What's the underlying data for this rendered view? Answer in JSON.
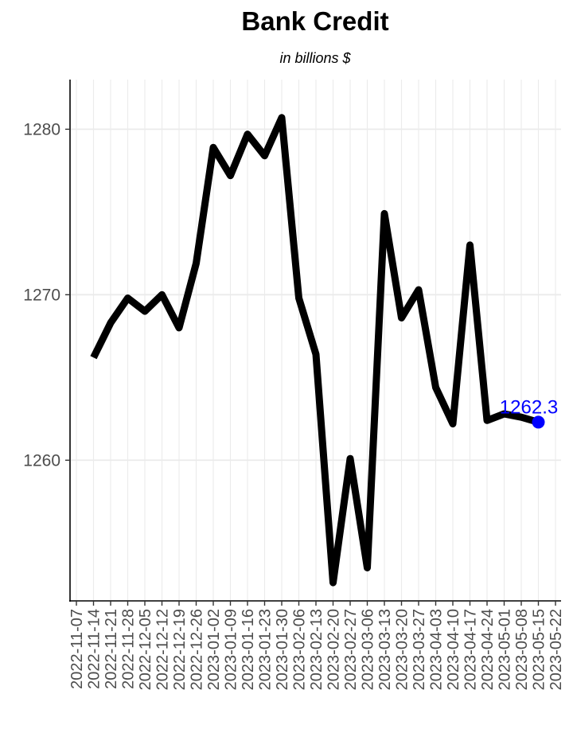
{
  "chart_data": {
    "type": "line",
    "title": "Bank Credit",
    "subtitle": "in billions $",
    "xlabel": "",
    "ylabel": "",
    "x": [
      "2022-11-14",
      "2022-11-21",
      "2022-11-28",
      "2022-12-05",
      "2022-12-12",
      "2022-12-19",
      "2022-12-26",
      "2023-01-02",
      "2023-01-09",
      "2023-01-16",
      "2023-01-23",
      "2023-01-30",
      "2023-02-06",
      "2023-02-13",
      "2023-02-20",
      "2023-02-27",
      "2023-03-06",
      "2023-03-13",
      "2023-03-20",
      "2023-03-27",
      "2023-04-03",
      "2023-04-10",
      "2023-04-17",
      "2023-04-24",
      "2023-05-01",
      "2023-05-08",
      "2023-05-15"
    ],
    "series": [
      {
        "values": [
          1266.2,
          1268.3,
          1269.8,
          1269.0,
          1270.0,
          1268.0,
          1271.9,
          1278.9,
          1277.2,
          1279.7,
          1278.4,
          1280.7,
          1269.8,
          1266.4,
          1252.6,
          1260.1,
          1253.5,
          1274.9,
          1268.6,
          1270.3,
          1264.4,
          1262.2,
          1273.0,
          1262.4,
          1262.8,
          1262.6,
          1262.3
        ]
      }
    ],
    "x_ticks": [
      "2022-11-07",
      "2022-11-14",
      "2022-11-21",
      "2022-11-28",
      "2022-12-05",
      "2022-12-12",
      "2022-12-19",
      "2022-12-26",
      "2023-01-02",
      "2023-01-09",
      "2023-01-16",
      "2023-01-23",
      "2023-01-30",
      "2023-02-06",
      "2023-02-13",
      "2023-02-20",
      "2023-02-27",
      "2023-03-06",
      "2023-03-13",
      "2023-03-20",
      "2023-03-27",
      "2023-04-03",
      "2023-04-10",
      "2023-04-17",
      "2023-04-24",
      "2023-05-01",
      "2023-05-08",
      "2023-05-15",
      "2023-05-22"
    ],
    "y_ticks": [
      1260,
      1270,
      1280
    ],
    "ylim": [
      1251.5,
      1283
    ],
    "last_point_label": "1262.3",
    "line_color": "#000000",
    "highlight_color": "#0000ff",
    "grid": true,
    "legend": "none"
  }
}
